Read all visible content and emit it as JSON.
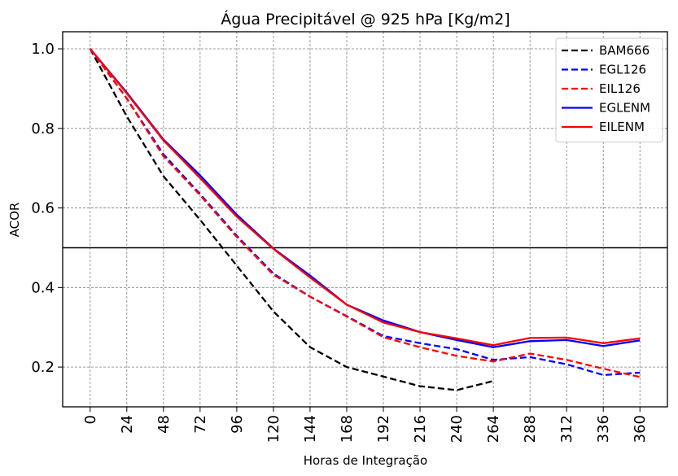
{
  "chart_data": {
    "type": "line",
    "title": "Água Precipitável @ 925 hPa [Kg/m2]",
    "xlabel": "Horas de Integração",
    "ylabel": "ACOR",
    "x": [
      0,
      24,
      48,
      72,
      96,
      120,
      144,
      168,
      192,
      216,
      240,
      264,
      288,
      312,
      336,
      360
    ],
    "x_tick_labels": [
      "0",
      "24",
      "48",
      "72",
      "96",
      "120",
      "144",
      "168",
      "192",
      "216",
      "240",
      "264",
      "288",
      "312",
      "336",
      "360"
    ],
    "y_ticks": [
      0.2,
      0.4,
      0.6,
      0.8,
      1.0
    ],
    "y_tick_labels": [
      "0.2",
      "0.4",
      "0.6",
      "0.8",
      "1.0"
    ],
    "xlim": [
      -18,
      378
    ],
    "ylim": [
      0.1,
      1.043
    ],
    "grid": true,
    "reference_line_y": 0.5,
    "legend_position": "top-right",
    "series": [
      {
        "name": "BAM666",
        "color": "#000000",
        "dash": "dashed",
        "values": [
          1.0,
          0.83,
          0.68,
          0.57,
          0.455,
          0.34,
          0.25,
          0.2,
          0.176,
          0.152,
          0.142,
          0.165,
          null,
          null,
          null,
          null
        ]
      },
      {
        "name": "EGL126",
        "color": "#0000ff",
        "dash": "dashed",
        "values": [
          1.0,
          0.875,
          0.735,
          0.635,
          0.53,
          0.435,
          0.377,
          0.328,
          0.278,
          0.26,
          0.245,
          0.218,
          0.225,
          0.207,
          0.18,
          0.186
        ]
      },
      {
        "name": "EIL126",
        "color": "#ff0000",
        "dash": "dashed",
        "values": [
          1.0,
          0.875,
          0.73,
          0.632,
          0.527,
          0.432,
          0.377,
          0.327,
          0.275,
          0.25,
          0.228,
          0.214,
          0.234,
          0.218,
          0.196,
          0.175
        ]
      },
      {
        "name": "EGLENM",
        "color": "#0000ff",
        "dash": "solid",
        "values": [
          1.0,
          0.89,
          0.772,
          0.682,
          0.583,
          0.498,
          0.43,
          0.357,
          0.317,
          0.288,
          0.268,
          0.25,
          0.265,
          0.268,
          0.253,
          0.267
        ]
      },
      {
        "name": "EILENM",
        "color": "#ff0000",
        "dash": "solid",
        "values": [
          1.0,
          0.888,
          0.77,
          0.675,
          0.578,
          0.497,
          0.425,
          0.357,
          0.312,
          0.288,
          0.272,
          0.255,
          0.273,
          0.274,
          0.26,
          0.272
        ]
      }
    ]
  }
}
